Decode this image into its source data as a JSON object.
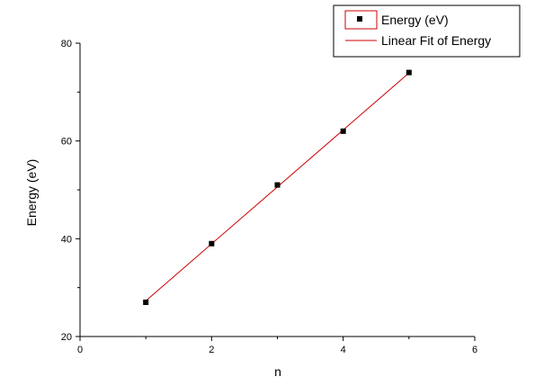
{
  "chart_data": {
    "type": "scatter",
    "xlabel": "n",
    "ylabel": "Energy (eV)",
    "xlim": [
      0,
      6
    ],
    "ylim": [
      20,
      80
    ],
    "xticks": [
      "0",
      "2",
      "4",
      "6"
    ],
    "yticks": [
      "20",
      "40",
      "60",
      "80"
    ],
    "grid": false,
    "legend_position": "top-right",
    "series": [
      {
        "name": "Energy (eV)",
        "kind": "scatter",
        "marker": "square",
        "color": "#000000",
        "x": [
          1,
          2,
          3,
          4,
          5
        ],
        "y": [
          27.0,
          39.0,
          51.0,
          62.0,
          74.0
        ]
      },
      {
        "name": "Linear Fit of Energy",
        "kind": "line",
        "color": "#cc0000",
        "x": [
          1,
          5
        ],
        "y": [
          27.3,
          73.9
        ]
      }
    ]
  }
}
